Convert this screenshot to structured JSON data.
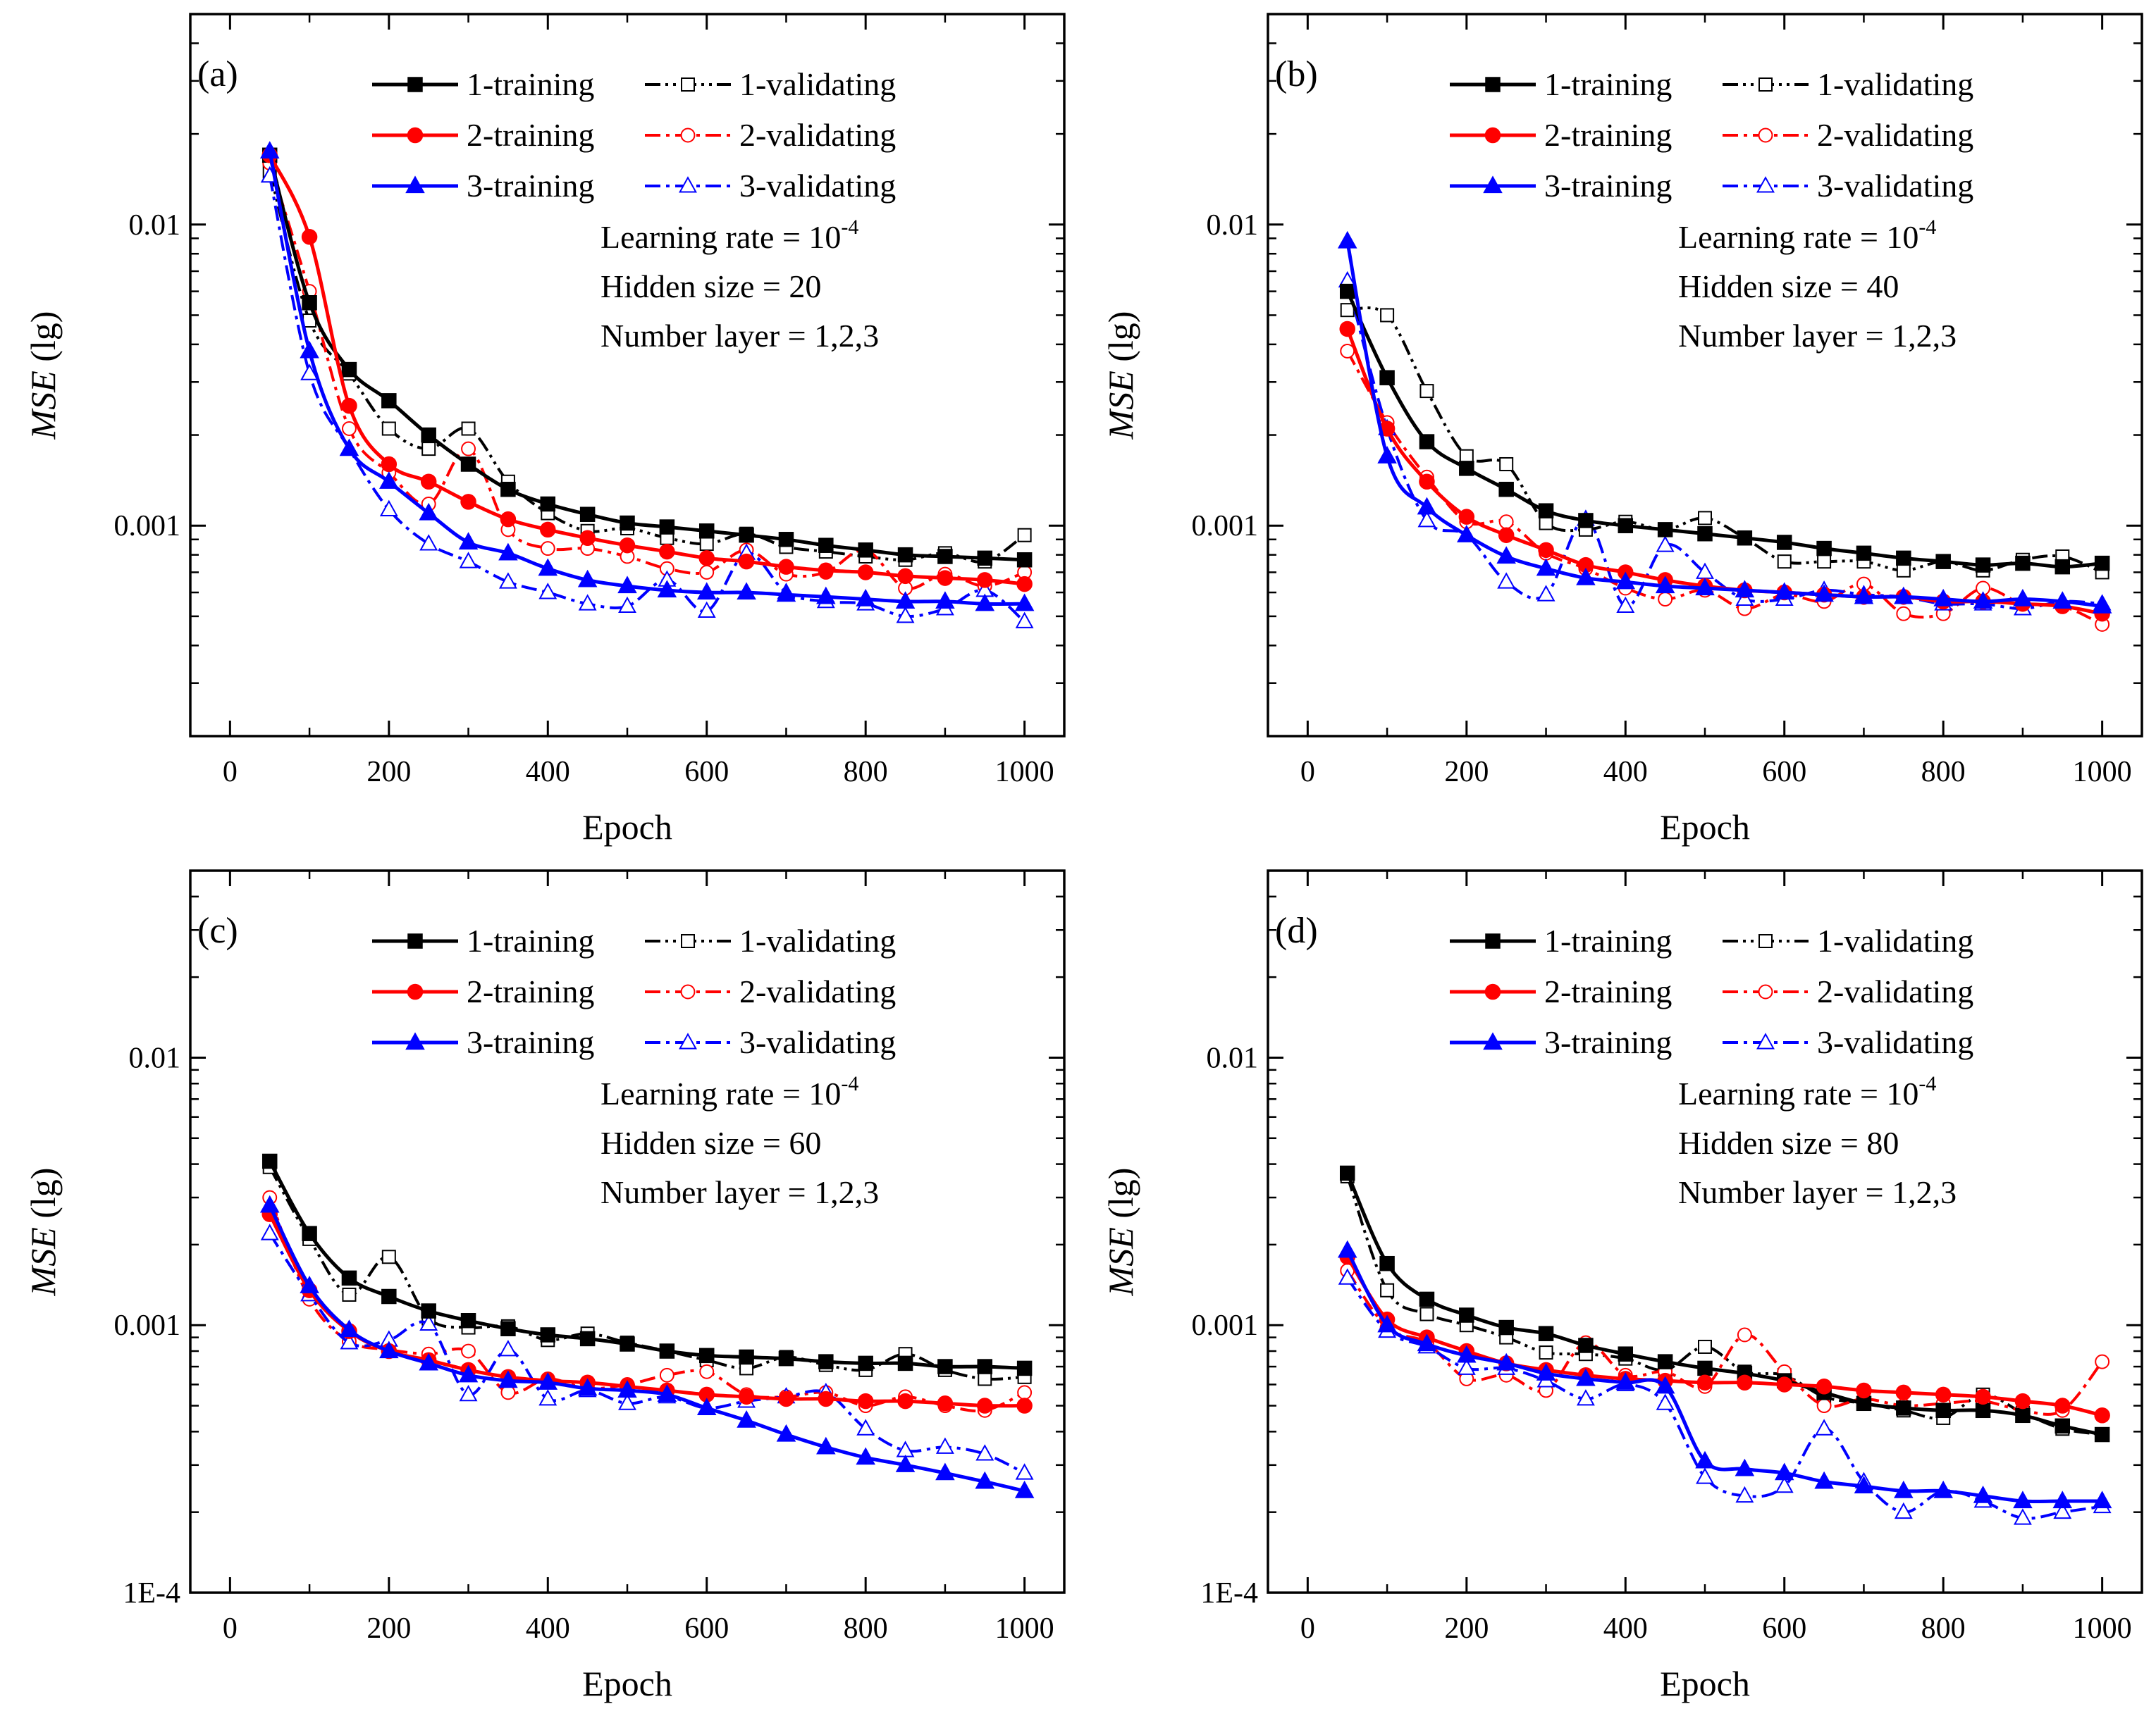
{
  "figure": {
    "series_styles": [
      {
        "name": "1-training",
        "color": "#000000",
        "marker": "square",
        "filled": true,
        "dash": "solid"
      },
      {
        "name": "1-validating",
        "color": "#000000",
        "marker": "square",
        "filled": false,
        "dash": "dashdotdot"
      },
      {
        "name": "2-training",
        "color": "#ff0000",
        "marker": "circle",
        "filled": true,
        "dash": "solid"
      },
      {
        "name": "2-validating",
        "color": "#ff0000",
        "marker": "circle",
        "filled": false,
        "dash": "dashdot"
      },
      {
        "name": "3-training",
        "color": "#0000ff",
        "marker": "triangle",
        "filled": true,
        "dash": "solid"
      },
      {
        "name": "3-validating",
        "color": "#0000ff",
        "marker": "triangle",
        "filled": false,
        "dash": "dashdot"
      }
    ]
  },
  "chart_data": [
    {
      "type": "line",
      "panel_label": "(a)",
      "xlabel": "Epoch",
      "ylabel": "MSE",
      "ylabel_suffix": " (lg)",
      "yscale": "log",
      "xlim": [
        -50,
        1050
      ],
      "ylim": [
        0.0002,
        0.05
      ],
      "xticks": [
        0,
        200,
        400,
        600,
        800,
        1000
      ],
      "xtick_labels": [
        "0",
        "200",
        "400",
        "600",
        "800",
        "1000"
      ],
      "yticks": [
        0.001,
        0.01
      ],
      "ytick_labels": [
        "0.001",
        "0.01"
      ],
      "legend": [
        "1-training",
        "1-validating",
        "2-training",
        "2-validating",
        "3-training",
        "3-validating"
      ],
      "annotation": {
        "lr_text": "Learning rate = 10",
        "lr_exp": "-4",
        "hidden_text": "Hidden size = 20",
        "layer_text": "Number layer = 1,2,3"
      },
      "x": [
        50,
        100,
        150,
        200,
        250,
        300,
        350,
        400,
        450,
        500,
        550,
        600,
        650,
        700,
        750,
        800,
        850,
        900,
        950,
        1000
      ],
      "series": [
        {
          "name": "1-training",
          "values": [
            0.017,
            0.0055,
            0.0033,
            0.0026,
            0.002,
            0.0016,
            0.00132,
            0.00118,
            0.00109,
            0.00102,
            0.00099,
            0.00096,
            0.00093,
            0.0009,
            0.00086,
            0.00083,
            0.0008,
            0.00079,
            0.00078,
            0.00077
          ]
        },
        {
          "name": "1-validating",
          "values": [
            0.015,
            0.0048,
            0.0032,
            0.0021,
            0.0018,
            0.0021,
            0.0014,
            0.0011,
            0.00096,
            0.00098,
            0.00091,
            0.00087,
            0.00094,
            0.00085,
            0.00082,
            0.00079,
            0.00077,
            0.00081,
            0.00076,
            0.00093
          ]
        },
        {
          "name": "2-training",
          "values": [
            0.017,
            0.0091,
            0.0025,
            0.0016,
            0.0014,
            0.0012,
            0.00105,
            0.00097,
            0.00091,
            0.00086,
            0.00082,
            0.00078,
            0.00076,
            0.00073,
            0.00071,
            0.0007,
            0.00068,
            0.00067,
            0.00066,
            0.00064
          ]
        },
        {
          "name": "2-validating",
          "values": [
            0.016,
            0.006,
            0.0021,
            0.0015,
            0.00118,
            0.0018,
            0.00097,
            0.00084,
            0.00084,
            0.00079,
            0.00072,
            0.0007,
            0.00083,
            0.00069,
            0.0007,
            0.00083,
            0.00062,
            0.00069,
            0.00063,
            0.0007
          ]
        },
        {
          "name": "3-training",
          "values": [
            0.0175,
            0.0038,
            0.0018,
            0.0014,
            0.0011,
            0.00088,
            0.00081,
            0.00072,
            0.00066,
            0.00063,
            0.00061,
            0.0006,
            0.0006,
            0.00059,
            0.00058,
            0.00057,
            0.00056,
            0.00056,
            0.00055,
            0.00055
          ]
        },
        {
          "name": "3-validating",
          "values": [
            0.0145,
            0.0032,
            0.0018,
            0.00113,
            0.00087,
            0.00076,
            0.00065,
            0.0006,
            0.00055,
            0.00054,
            0.00066,
            0.00052,
            0.00081,
            0.0006,
            0.00056,
            0.00055,
            0.0005,
            0.00053,
            0.00061,
            0.00048
          ]
        }
      ]
    },
    {
      "type": "line",
      "panel_label": "(b)",
      "xlabel": "Epoch",
      "ylabel": "MSE",
      "ylabel_suffix": " (lg)",
      "yscale": "log",
      "xlim": [
        -50,
        1050
      ],
      "ylim": [
        0.0002,
        0.05
      ],
      "xticks": [
        0,
        200,
        400,
        600,
        800,
        1000
      ],
      "xtick_labels": [
        "0",
        "200",
        "400",
        "600",
        "800",
        "1000"
      ],
      "yticks": [
        0.001,
        0.01
      ],
      "ytick_labels": [
        "0.001",
        "0.01"
      ],
      "legend": [
        "1-training",
        "1-validating",
        "2-training",
        "2-validating",
        "3-training",
        "3-validating"
      ],
      "annotation": {
        "lr_text": "Learning rate = 10",
        "lr_exp": "-4",
        "hidden_text": "Hidden size = 40",
        "layer_text": "Number layer = 1,2,3"
      },
      "x": [
        50,
        100,
        150,
        200,
        250,
        300,
        350,
        400,
        450,
        500,
        550,
        600,
        650,
        700,
        750,
        800,
        850,
        900,
        950,
        1000
      ],
      "series": [
        {
          "name": "1-training",
          "values": [
            0.006,
            0.0031,
            0.0019,
            0.00155,
            0.00132,
            0.00112,
            0.00104,
            0.001,
            0.00097,
            0.00094,
            0.00091,
            0.00088,
            0.00084,
            0.00081,
            0.00078,
            0.00076,
            0.00074,
            0.00075,
            0.00073,
            0.00075
          ]
        },
        {
          "name": "1-validating",
          "values": [
            0.0052,
            0.005,
            0.0028,
            0.0017,
            0.0016,
            0.00102,
            0.00097,
            0.00103,
            0.00097,
            0.00106,
            0.00091,
            0.00076,
            0.00076,
            0.00076,
            0.00071,
            0.00076,
            0.00071,
            0.00077,
            0.00079,
            0.0007
          ]
        },
        {
          "name": "2-training",
          "values": [
            0.0045,
            0.0021,
            0.0014,
            0.00107,
            0.00093,
            0.00083,
            0.00074,
            0.0007,
            0.00066,
            0.00063,
            0.00061,
            0.0006,
            0.00059,
            0.00058,
            0.00058,
            0.00056,
            0.00056,
            0.00055,
            0.00054,
            0.00051
          ]
        },
        {
          "name": "2-validating",
          "values": [
            0.0038,
            0.0022,
            0.00145,
            0.00103,
            0.00103,
            0.00081,
            0.00072,
            0.00062,
            0.00057,
            0.00061,
            0.00053,
            0.00059,
            0.00056,
            0.00064,
            0.00051,
            0.00051,
            0.00062,
            0.00055,
            0.00054,
            0.00047
          ]
        },
        {
          "name": "3-training",
          "values": [
            0.0088,
            0.0017,
            0.00115,
            0.00093,
            0.00079,
            0.00072,
            0.00067,
            0.00065,
            0.00063,
            0.00062,
            0.00061,
            0.0006,
            0.00059,
            0.00058,
            0.00058,
            0.00057,
            0.00056,
            0.00057,
            0.00056,
            0.00054
          ]
        },
        {
          "name": "3-validating",
          "values": [
            0.0065,
            0.0021,
            0.00104,
            0.00093,
            0.00065,
            0.00059,
            0.00105,
            0.00054,
            0.00086,
            0.0007,
            0.00057,
            0.00057,
            0.00061,
            0.00059,
            0.00058,
            0.00055,
            0.00055,
            0.00053,
            0.00056,
            0.00055
          ]
        }
      ]
    },
    {
      "type": "line",
      "panel_label": "(c)",
      "xlabel": "Epoch",
      "ylabel": "MSE",
      "ylabel_suffix": " (lg)",
      "yscale": "log",
      "xlim": [
        -50,
        1050
      ],
      "ylim": [
        0.0001,
        0.05
      ],
      "xticks": [
        0,
        200,
        400,
        600,
        800,
        1000
      ],
      "xtick_labels": [
        "0",
        "200",
        "400",
        "600",
        "800",
        "1000"
      ],
      "yticks": [
        0.0001,
        0.001,
        0.01
      ],
      "ytick_labels": [
        "1E-4",
        "0.001",
        "0.01"
      ],
      "legend": [
        "1-training",
        "1-validating",
        "2-training",
        "2-validating",
        "3-training",
        "3-validating"
      ],
      "annotation": {
        "lr_text": "Learning rate = 10",
        "lr_exp": "-4",
        "hidden_text": "Hidden size = 60",
        "layer_text": "Number layer = 1,2,3"
      },
      "x": [
        50,
        100,
        150,
        200,
        250,
        300,
        350,
        400,
        450,
        500,
        550,
        600,
        650,
        700,
        750,
        800,
        850,
        900,
        950,
        1000
      ],
      "series": [
        {
          "name": "1-training",
          "values": [
            0.0041,
            0.0022,
            0.0015,
            0.00128,
            0.00113,
            0.00104,
            0.00097,
            0.00092,
            0.00089,
            0.00085,
            0.0008,
            0.00077,
            0.00076,
            0.00075,
            0.00073,
            0.00072,
            0.00072,
            0.0007,
            0.0007,
            0.00069
          ]
        },
        {
          "name": "1-validating",
          "values": [
            0.0039,
            0.0021,
            0.0013,
            0.0018,
            0.00106,
            0.00098,
            0.00099,
            0.00088,
            0.00093,
            0.00086,
            0.0008,
            0.00074,
            0.00069,
            0.00076,
            0.00071,
            0.00068,
            0.00078,
            0.00068,
            0.00063,
            0.00064
          ]
        },
        {
          "name": "2-training",
          "values": [
            0.0026,
            0.00135,
            0.00095,
            0.0008,
            0.00074,
            0.00068,
            0.00064,
            0.00062,
            0.00061,
            0.00059,
            0.00057,
            0.00055,
            0.00054,
            0.00053,
            0.00053,
            0.00052,
            0.00052,
            0.00051,
            0.0005,
            0.0005
          ]
        },
        {
          "name": "2-validating",
          "values": [
            0.003,
            0.00125,
            0.00087,
            0.00081,
            0.00078,
            0.0008,
            0.00056,
            0.00063,
            0.00058,
            0.0006,
            0.00065,
            0.00067,
            0.00055,
            0.00054,
            0.00056,
            0.0005,
            0.00054,
            0.0005,
            0.00048,
            0.00056
          ]
        },
        {
          "name": "3-training",
          "values": [
            0.0028,
            0.0014,
            0.00096,
            0.0008,
            0.00072,
            0.00065,
            0.00062,
            0.00061,
            0.00058,
            0.00057,
            0.00055,
            0.00049,
            0.00044,
            0.00039,
            0.00035,
            0.00032,
            0.0003,
            0.00028,
            0.00026,
            0.00024
          ]
        },
        {
          "name": "3-validating",
          "values": [
            0.0022,
            0.0013,
            0.00086,
            0.00088,
            0.00101,
            0.00055,
            0.00081,
            0.00053,
            0.00057,
            0.00051,
            0.00054,
            0.00049,
            0.00052,
            0.00054,
            0.00056,
            0.00041,
            0.00034,
            0.00035,
            0.00033,
            0.00028
          ]
        }
      ]
    },
    {
      "type": "line",
      "panel_label": "(d)",
      "xlabel": "Epoch",
      "ylabel": "MSE",
      "ylabel_suffix": " (lg)",
      "yscale": "log",
      "xlim": [
        -50,
        1050
      ],
      "ylim": [
        0.0001,
        0.05
      ],
      "xticks": [
        0,
        200,
        400,
        600,
        800,
        1000
      ],
      "xtick_labels": [
        "0",
        "200",
        "400",
        "600",
        "800",
        "1000"
      ],
      "yticks": [
        0.0001,
        0.001,
        0.01
      ],
      "ytick_labels": [
        "1E-4",
        "0.001",
        "0.01"
      ],
      "legend": [
        "1-training",
        "1-validating",
        "2-training",
        "2-validating",
        "3-training",
        "3-validating"
      ],
      "annotation": {
        "lr_text": "Learning rate = 10",
        "lr_exp": "-4",
        "hidden_text": "Hidden size = 80",
        "layer_text": "Number layer = 1,2,3"
      },
      "x": [
        50,
        100,
        150,
        200,
        250,
        300,
        350,
        400,
        450,
        500,
        550,
        600,
        650,
        700,
        750,
        800,
        850,
        900,
        950,
        1000
      ],
      "series": [
        {
          "name": "1-training",
          "values": [
            0.0037,
            0.0017,
            0.00125,
            0.00109,
            0.00098,
            0.00093,
            0.00084,
            0.00078,
            0.00073,
            0.00069,
            0.00066,
            0.00062,
            0.00056,
            0.00051,
            0.00049,
            0.00048,
            0.00048,
            0.00046,
            0.00042,
            0.00039
          ]
        },
        {
          "name": "1-validating",
          "values": [
            0.0036,
            0.00135,
            0.0011,
            0.001,
            0.0009,
            0.00079,
            0.00078,
            0.00075,
            0.00068,
            0.00083,
            0.00067,
            0.00065,
            0.00054,
            0.00051,
            0.00048,
            0.00045,
            0.00055,
            0.00047,
            0.00041,
            0.00039
          ]
        },
        {
          "name": "2-training",
          "values": [
            0.0018,
            0.00105,
            0.0009,
            0.0008,
            0.00072,
            0.00068,
            0.00065,
            0.00063,
            0.00062,
            0.00061,
            0.00061,
            0.0006,
            0.00059,
            0.00057,
            0.00056,
            0.00055,
            0.00054,
            0.00052,
            0.0005,
            0.00046
          ]
        },
        {
          "name": "2-validating",
          "values": [
            0.0016,
            0.00098,
            0.00086,
            0.00063,
            0.00065,
            0.00057,
            0.00086,
            0.00065,
            0.00067,
            0.00059,
            0.00092,
            0.00067,
            0.0005,
            0.00053,
            0.0005,
            0.00051,
            0.00052,
            0.00048,
            0.00048,
            0.00073
          ]
        },
        {
          "name": "3-training",
          "values": [
            0.0019,
            0.001,
            0.00085,
            0.00077,
            0.00072,
            0.00066,
            0.00063,
            0.00061,
            0.00059,
            0.00031,
            0.00029,
            0.00028,
            0.00026,
            0.00025,
            0.00024,
            0.00024,
            0.00023,
            0.00022,
            0.00022,
            0.00022
          ]
        },
        {
          "name": "3-validating",
          "values": [
            0.0015,
            0.00095,
            0.00083,
            0.00069,
            0.00069,
            0.00062,
            0.00053,
            0.0006,
            0.00051,
            0.00027,
            0.00023,
            0.00025,
            0.00041,
            0.00026,
            0.0002,
            0.00024,
            0.00022,
            0.00019,
            0.0002,
            0.00021
          ]
        }
      ]
    }
  ]
}
